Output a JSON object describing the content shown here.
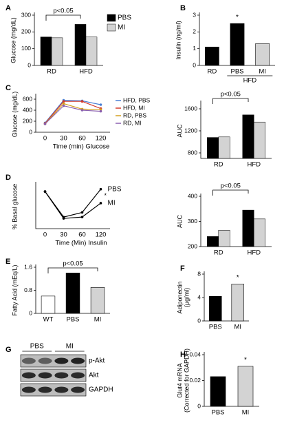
{
  "chart_data": [
    {
      "panel": "A",
      "type": "bar",
      "ylabel": [
        "Glucose (mg/dL)"
      ],
      "categories": [
        "RD",
        "HFD"
      ],
      "series": [
        {
          "name": "PBS",
          "color": "#000000",
          "values": [
            170,
            245
          ]
        },
        {
          "name": "MI",
          "color": "#d3d3d3",
          "values": [
            165,
            170
          ]
        }
      ],
      "ylim": [
        0,
        300
      ],
      "yticks": [
        0,
        100,
        200,
        300
      ],
      "annotation": "p<0.05"
    },
    {
      "panel": "B",
      "type": "bar",
      "ylabel": [
        "Insulin (ng/ml)"
      ],
      "categories": [
        "RD",
        "PBS",
        "MI"
      ],
      "group_label": "HFD",
      "values": [
        1.1,
        2.5,
        1.3
      ],
      "colors": [
        "#000000",
        "#000000",
        "#d3d3d3"
      ],
      "ylim": [
        0,
        3
      ],
      "yticks": [
        0,
        1,
        2,
        3
      ],
      "annotation": "*"
    },
    {
      "panel": "C",
      "type": "line",
      "ylabel": [
        "Glucose (mg/dL)"
      ],
      "xlabel": "Time (min) Glucose",
      "categories": [
        "0",
        "30",
        "60",
        "120"
      ],
      "series": [
        {
          "name": "HFD, PBS",
          "color": "#4a7fd4",
          "values": [
            170,
            580,
            570,
            500
          ]
        },
        {
          "name": "HFD, MI",
          "color": "#d43a2a",
          "values": [
            160,
            560,
            560,
            430
          ]
        },
        {
          "name": "RD, PBS",
          "color": "#d4a020",
          "values": [
            150,
            520,
            420,
            410
          ]
        },
        {
          "name": "RD, MI",
          "color": "#8a60b0",
          "values": [
            150,
            480,
            400,
            380
          ]
        }
      ],
      "ylim": [
        0,
        650
      ],
      "yticks": [
        0,
        200,
        400,
        600
      ]
    },
    {
      "type": "bar",
      "ylabel": [
        "AUC"
      ],
      "categories": [
        "RD",
        "HFD"
      ],
      "series": [
        {
          "name": "PBS",
          "color": "#000000",
          "values": [
            1080,
            1490
          ]
        },
        {
          "name": "MI",
          "color": "#d3d3d3",
          "values": [
            1090,
            1360
          ]
        }
      ],
      "ylim": [
        700,
        1700
      ],
      "yticks": [
        800,
        1200,
        1600
      ],
      "annotation": "p<0.05"
    },
    {
      "panel": "D",
      "type": "line",
      "ylabel": [
        "% Basal glucose"
      ],
      "xlabel": "Time (Min) Insulin",
      "categories": [
        "0",
        "30",
        "60",
        "120"
      ],
      "series": [
        {
          "name": "PBS",
          "color": "#000000",
          "values": [
            100,
            45,
            55,
            105
          ]
        },
        {
          "name": "MI",
          "color": "#000000",
          "values": [
            100,
            42,
            45,
            75
          ]
        }
      ],
      "ylim": [
        20,
        115
      ],
      "annotation": "*"
    },
    {
      "type": "bar",
      "ylabel": [
        "AUC"
      ],
      "categories": [
        "RD",
        "HFD"
      ],
      "series": [
        {
          "name": "PBS",
          "color": "#000000",
          "values": [
            240,
            345
          ]
        },
        {
          "name": "MI",
          "color": "#d3d3d3",
          "values": [
            265,
            310
          ]
        }
      ],
      "ylim": [
        200,
        400
      ],
      "yticks": [
        200,
        300,
        400
      ],
      "annotation": "p<0.05"
    },
    {
      "panel": "E",
      "type": "bar",
      "ylabel": [
        "Fatty Acid (mEq/L)"
      ],
      "categories": [
        "WT",
        "PBS",
        "MI"
      ],
      "values": [
        0.6,
        1.4,
        0.9
      ],
      "colors": [
        "#ffffff",
        "#000000",
        "#d3d3d3"
      ],
      "ylim": [
        0,
        1.6
      ],
      "yticks": [
        0,
        0.8,
        1.6
      ],
      "annotation": "p<0.05"
    },
    {
      "panel": "F",
      "type": "bar",
      "ylabel": [
        "Adiponectin",
        "(μg/ml)"
      ],
      "categories": [
        "PBS",
        "MI"
      ],
      "values": [
        4.2,
        6.3
      ],
      "colors": [
        "#000000",
        "#d3d3d3"
      ],
      "ylim": [
        0,
        8
      ],
      "yticks": [
        0,
        4,
        8
      ],
      "annotation": "*"
    },
    {
      "panel": "G",
      "type": "blot",
      "lanes": [
        "PBS",
        "MI"
      ],
      "rows": [
        "p-Akt",
        "Akt",
        "GAPDH"
      ]
    },
    {
      "panel": "H",
      "type": "bar",
      "ylabel": [
        "Glut4 mRNA",
        "(Corrected for GAPDH)"
      ],
      "categories": [
        "PBS",
        "MI"
      ],
      "values": [
        0.023,
        0.031
      ],
      "colors": [
        "#000000",
        "#d3d3d3"
      ],
      "ylim": [
        0,
        0.04
      ],
      "yticks": [
        0,
        0.02,
        0.04
      ],
      "annotation": "*"
    }
  ]
}
